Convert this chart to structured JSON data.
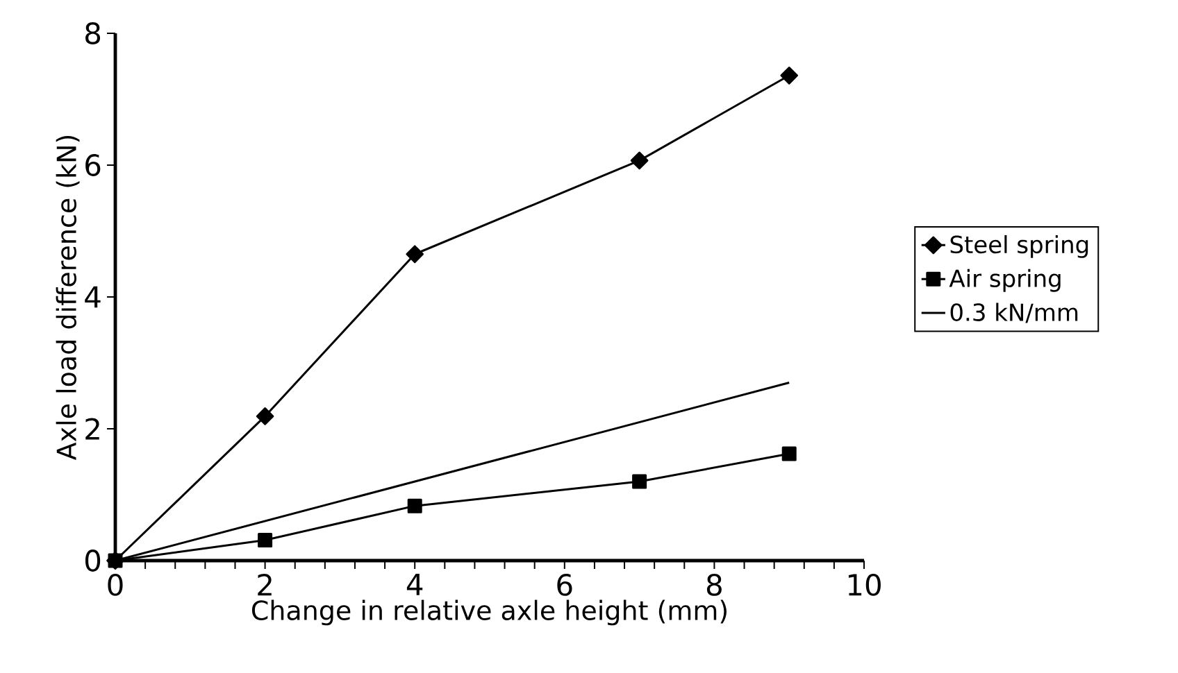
{
  "chart_data": {
    "type": "line",
    "xlabel": "Change in relative axle height (mm)",
    "ylabel": "Axle load difference (kN)",
    "xlim": [
      0,
      10
    ],
    "xticks": [
      0,
      2,
      4,
      6,
      8,
      10
    ],
    "ylim": [
      0,
      8
    ],
    "yticks": [
      0,
      2,
      4,
      6,
      8
    ],
    "grid": false,
    "legend": "right",
    "series": [
      {
        "name": "Steel spring",
        "color": "#000000",
        "marker": "diamond",
        "x": [
          0,
          2,
          4,
          7,
          9
        ],
        "values": [
          0,
          2.19,
          4.65,
          6.07,
          7.36
        ]
      },
      {
        "name": "Air spring",
        "color": "#000000",
        "marker": "square",
        "x": [
          0,
          2,
          4,
          7,
          9
        ],
        "values": [
          0,
          0.31,
          0.83,
          1.2,
          1.62
        ]
      },
      {
        "name": "0.3 kN/mm",
        "color": "#000000",
        "marker": "none",
        "x": [
          0,
          9
        ],
        "values": [
          0,
          2.7
        ]
      }
    ]
  }
}
